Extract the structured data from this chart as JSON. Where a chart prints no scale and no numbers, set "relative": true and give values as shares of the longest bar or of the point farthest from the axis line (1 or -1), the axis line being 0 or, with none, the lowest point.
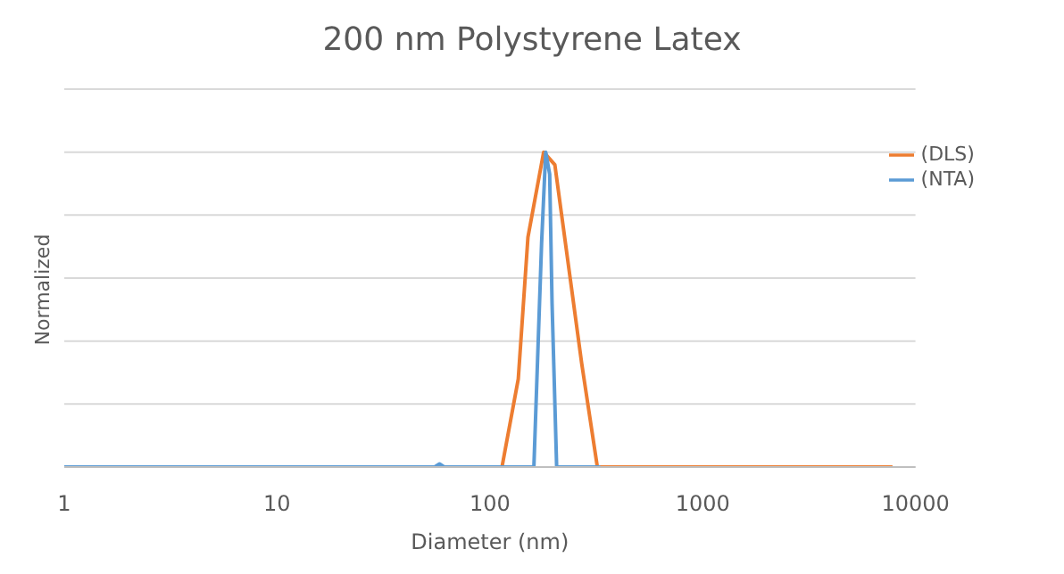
{
  "chart_data": {
    "type": "line",
    "title": "200 nm Polystyrene Latex",
    "xlabel": "Diameter (nm)",
    "ylabel": "Normalized",
    "relative": true,
    "log": "x",
    "xlim": [
      1,
      10000
    ],
    "xticks": [
      1,
      10,
      100,
      1000,
      10000
    ],
    "grid": "y",
    "tick_labels": "x",
    "legend": "top right",
    "marker": "none",
    "line_style": "solid",
    "series": [
      {
        "name": "(DLS)",
        "color": "#ed7d31",
        "x": [
          1,
          114,
          136,
          151,
          179,
          202,
          270,
          320,
          7800
        ],
        "values": [
          0,
          0,
          0.28,
          0.73,
          1,
          0.96,
          0.33,
          0,
          0
        ]
      },
      {
        "name": "(NTA)",
        "color": "#5b9bd5",
        "x": [
          1,
          55,
          58,
          61,
          161,
          175,
          183,
          191,
          196,
          206,
          330
        ],
        "values": [
          0,
          0,
          0.01,
          0,
          0,
          0.71,
          1,
          0.93,
          0.52,
          0,
          0
        ]
      }
    ]
  }
}
